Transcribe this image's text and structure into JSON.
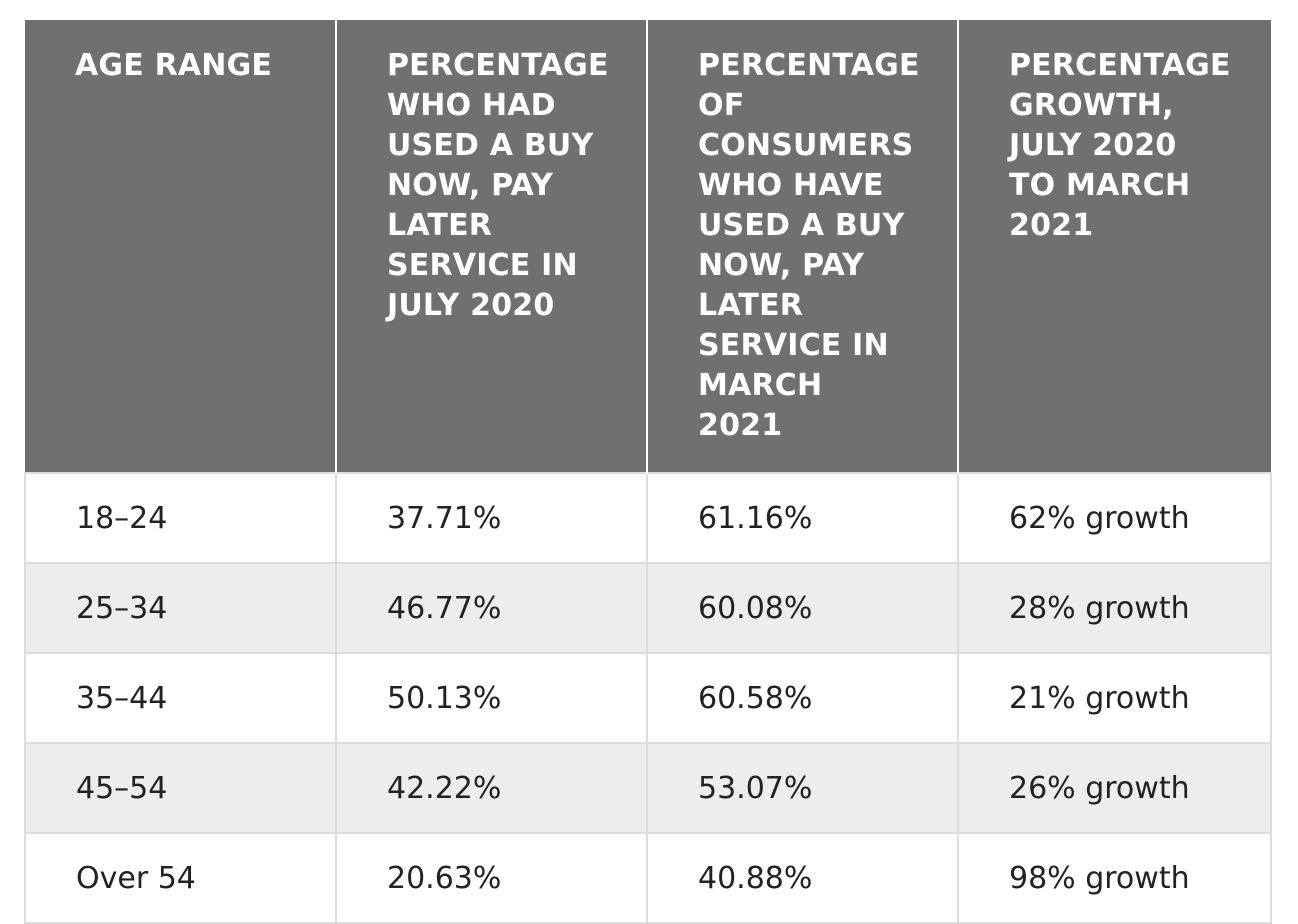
{
  "table": {
    "headers": [
      "AGE RANGE",
      "PERCENTAGE WHO HAD USED A BUY NOW, PAY LATER SERVICE IN JULY 2020",
      "PERCENTAGE OF CONSUMERS WHO HAVE USED A BUY NOW, PAY LATER SERVICE IN MARCH 2021",
      "PERCENTAGE GROWTH, JULY 2020 TO MARCH 2021"
    ],
    "rows": [
      [
        "18–24",
        "37.71%",
        "61.16%",
        "62% growth"
      ],
      [
        "25–34",
        "46.77%",
        "60.08%",
        "28% growth"
      ],
      [
        "35–44",
        "50.13%",
        "60.58%",
        "21% growth"
      ],
      [
        "45–54",
        "42.22%",
        "53.07%",
        "26% growth"
      ],
      [
        "Over 54",
        "20.63%",
        "40.88%",
        "98% growth"
      ]
    ]
  },
  "colors": {
    "header_bg": "#6f7072",
    "header_text": "#ffffff",
    "stripe_bg": "#ecedec",
    "border": "#dcdcdc"
  }
}
